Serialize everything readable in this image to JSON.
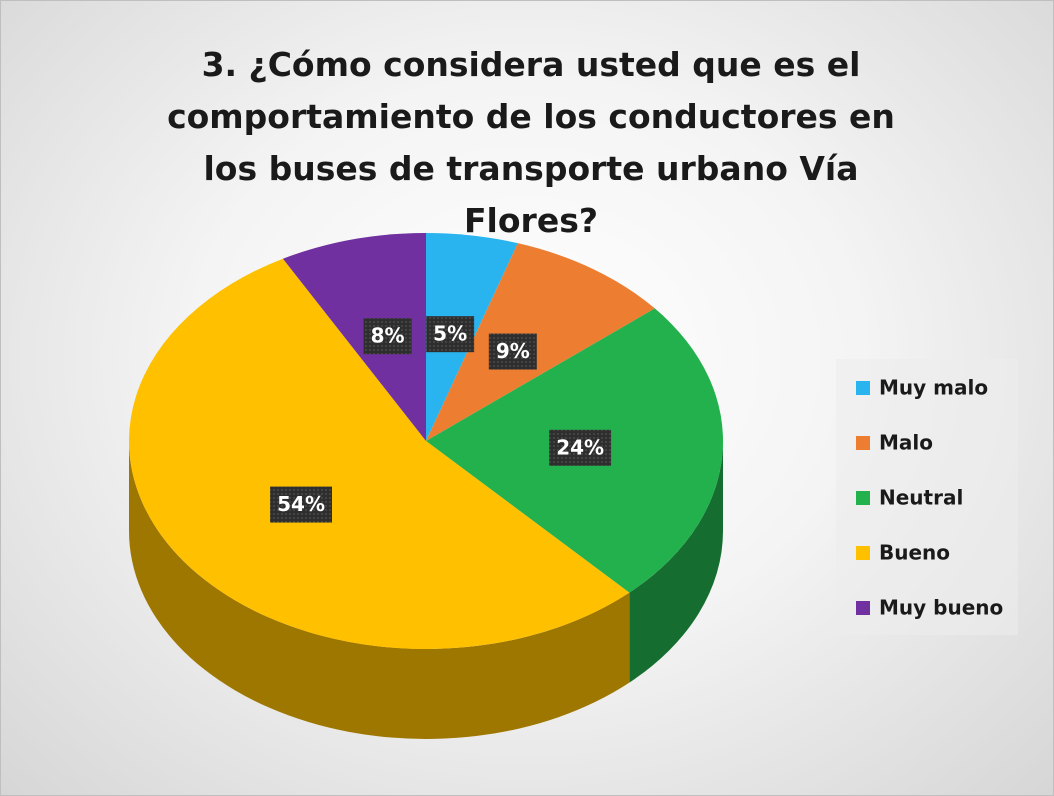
{
  "chart_data": {
    "type": "pie",
    "title": "3. ¿Cómo considera usted que es el comportamiento de los conductores en los buses de transporte urbano Vía Flores?",
    "categories": [
      "Muy malo",
      "Malo",
      "Neutral",
      "Bueno",
      "Muy bueno"
    ],
    "values": [
      5,
      9,
      24,
      54,
      8
    ],
    "value_labels": [
      "5%",
      "9%",
      "24%",
      "54%",
      "8%"
    ],
    "colors": [
      "#2ab4ef",
      "#ed7d31",
      "#22b14c",
      "#ffc000",
      "#7030a0"
    ],
    "legend": "right"
  }
}
